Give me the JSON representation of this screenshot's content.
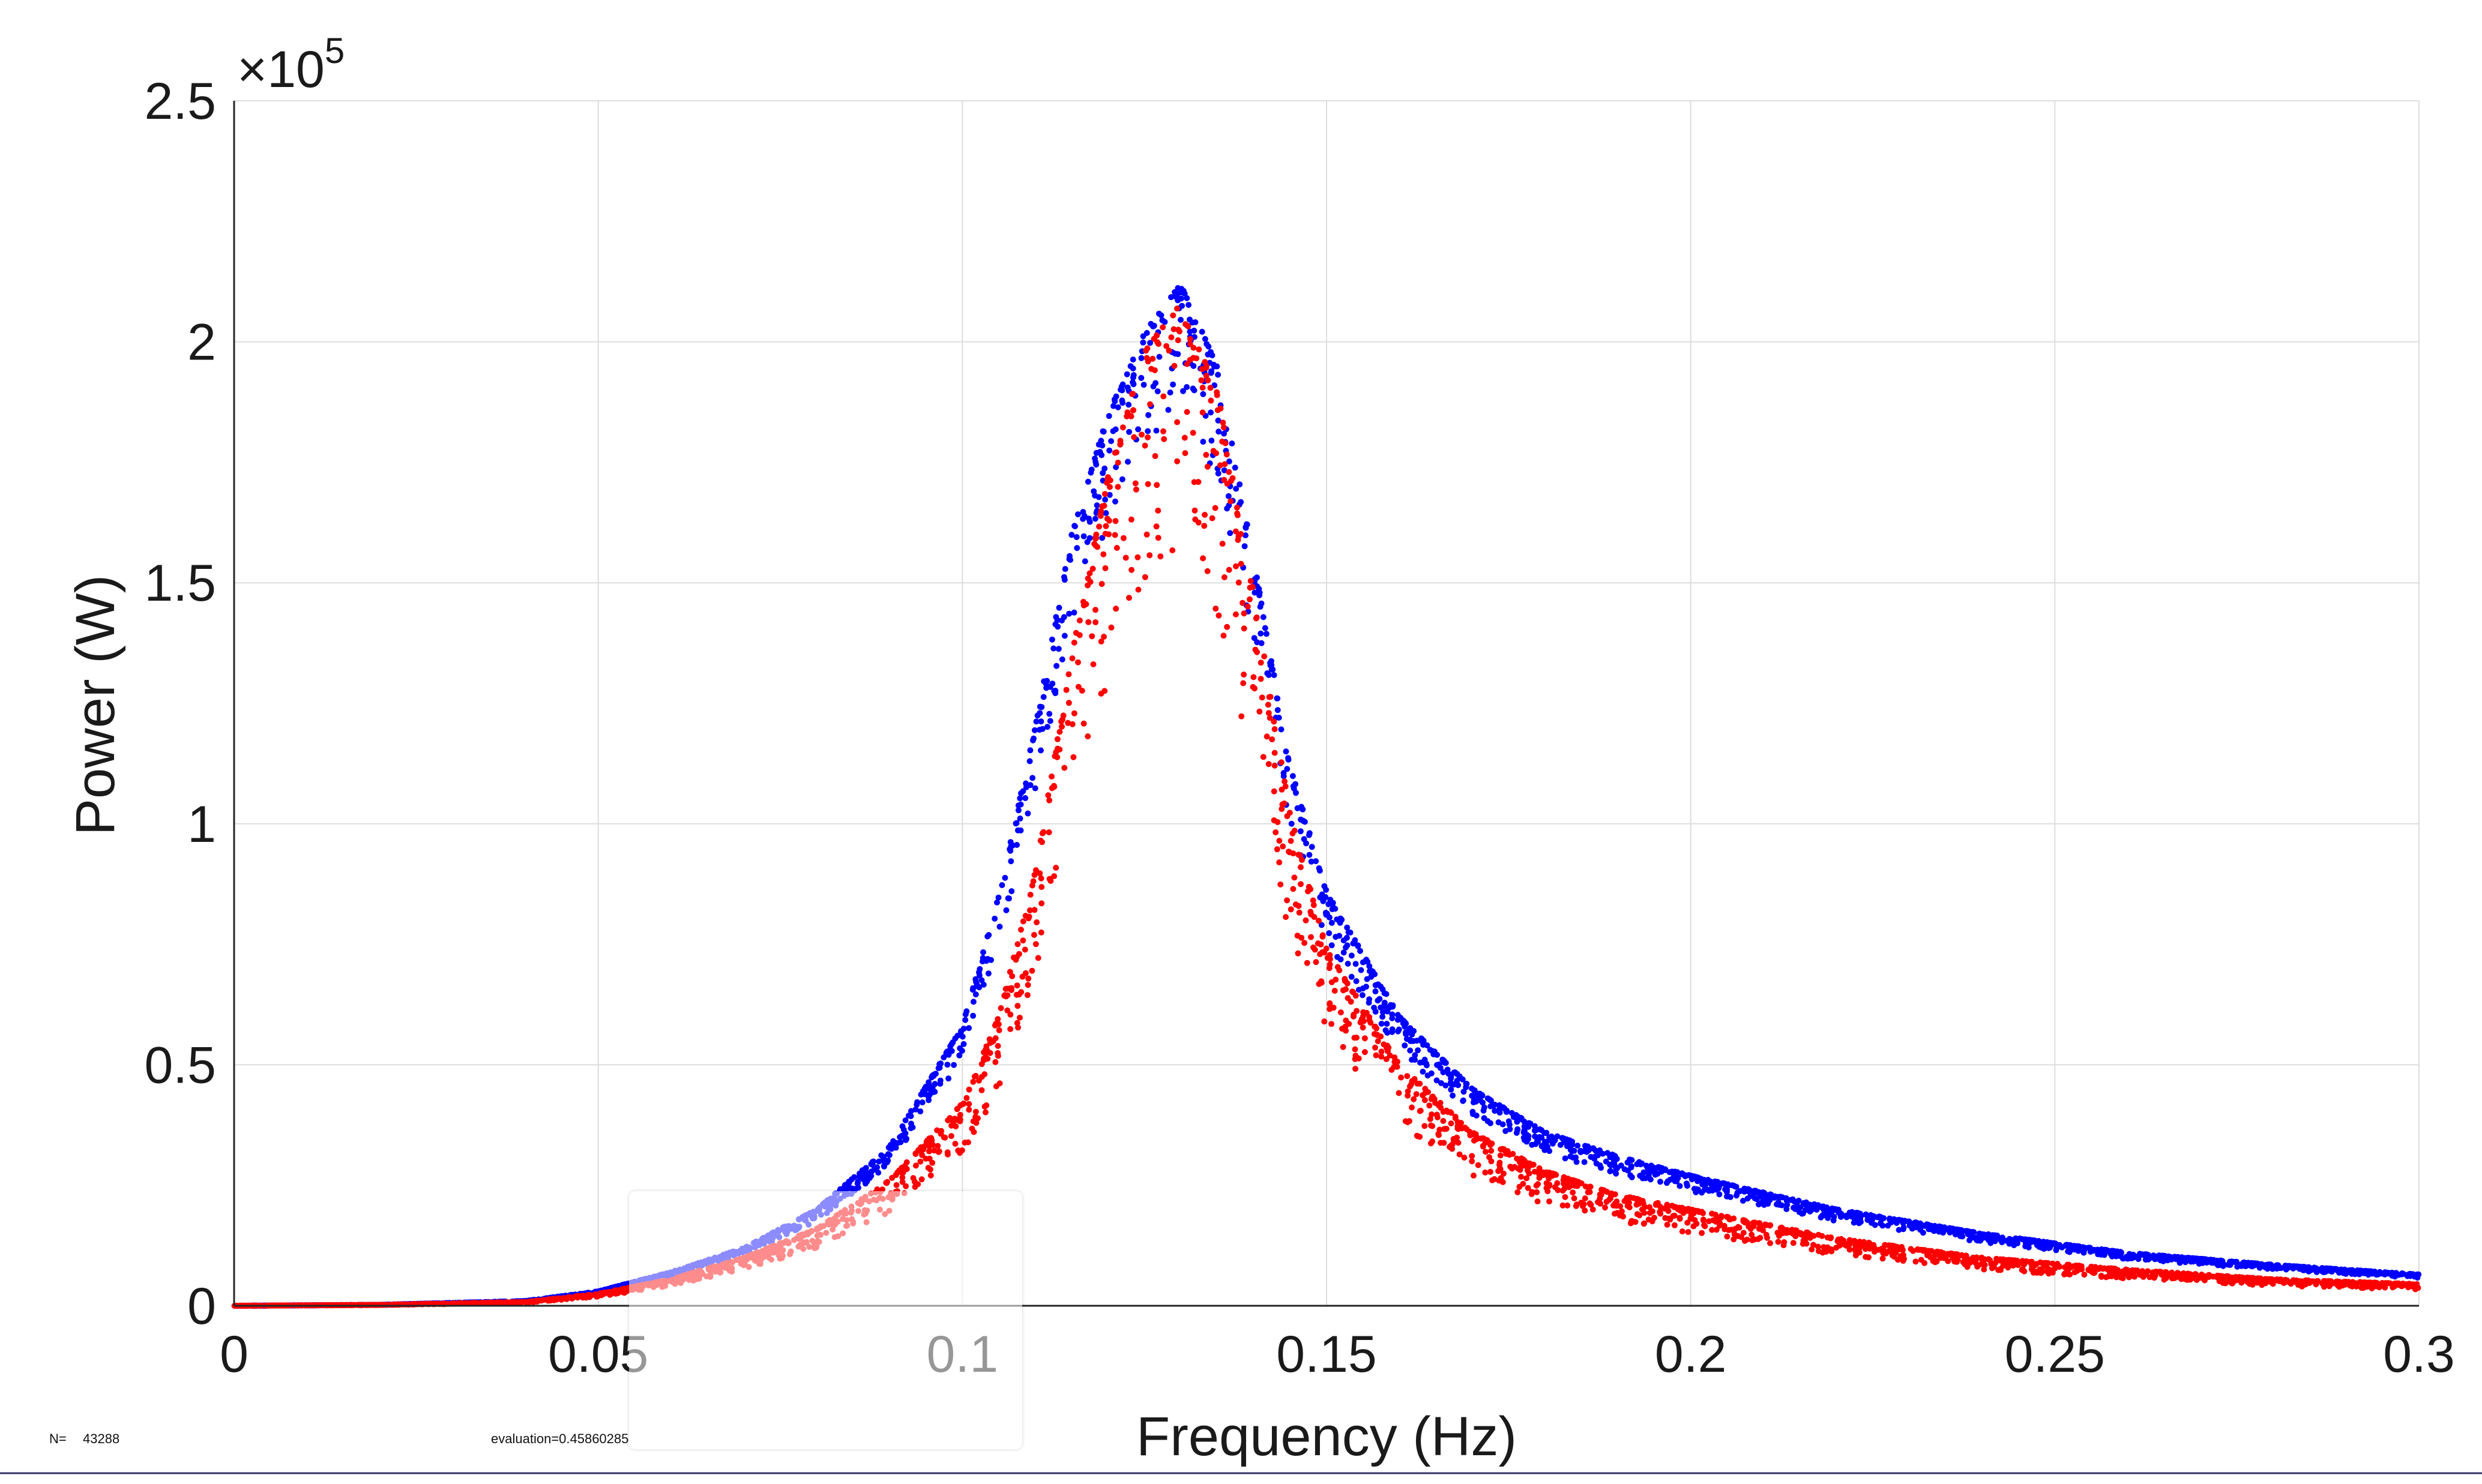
{
  "chart_data": {
    "type": "scatter",
    "title": "",
    "xlabel": "Frequency (Hz)",
    "ylabel": "Power (W)",
    "y_exponent_base": "×10",
    "y_exponent_power": "5",
    "xlim": [
      0,
      0.3
    ],
    "ylim": [
      0,
      2.5
    ],
    "xticks": [
      "0",
      "0.05",
      "0.1",
      "0.15",
      "0.2",
      "0.25",
      "0.3"
    ],
    "yticks": [
      "0",
      "0.5",
      "1",
      "1.5",
      "2",
      "2.5"
    ],
    "grid": true,
    "legend": "none",
    "series": [
      {
        "color": "#0000ff",
        "description_curve": {
          "x": [
            0,
            0.02,
            0.04,
            0.05,
            0.06,
            0.07,
            0.08,
            0.09,
            0.1,
            0.105,
            0.11,
            0.115,
            0.12,
            0.125,
            0.13,
            0.135,
            0.14,
            0.145,
            0.15,
            0.16,
            0.17,
            0.18,
            0.19,
            0.2,
            0.22,
            0.24,
            0.26,
            0.28,
            0.3
          ],
          "y": [
            0,
            0.002,
            0.01,
            0.03,
            0.07,
            0.12,
            0.2,
            0.33,
            0.58,
            0.85,
            1.2,
            1.6,
            1.85,
            2.02,
            2.12,
            1.95,
            1.55,
            1.12,
            0.86,
            0.6,
            0.45,
            0.36,
            0.31,
            0.27,
            0.2,
            0.15,
            0.11,
            0.085,
            0.065
          ]
        }
      },
      {
        "color": "#ff0000",
        "description_curve": {
          "x": [
            0,
            0.02,
            0.04,
            0.05,
            0.06,
            0.07,
            0.08,
            0.09,
            0.1,
            0.105,
            0.11,
            0.115,
            0.12,
            0.125,
            0.13,
            0.135,
            0.14,
            0.145,
            0.15,
            0.16,
            0.17,
            0.18,
            0.19,
            0.2,
            0.22,
            0.24,
            0.26,
            0.28,
            0.3
          ],
          "y": [
            0,
            0.002,
            0.008,
            0.025,
            0.055,
            0.1,
            0.16,
            0.26,
            0.42,
            0.6,
            0.9,
            1.35,
            1.72,
            1.98,
            2.08,
            1.9,
            1.48,
            1.02,
            0.74,
            0.5,
            0.36,
            0.28,
            0.23,
            0.2,
            0.14,
            0.1,
            0.075,
            0.055,
            0.045
          ]
        }
      }
    ]
  },
  "footer": {
    "n_label": "N=",
    "n_value": "43288",
    "evaluation": "evaluation=0.45860285"
  }
}
